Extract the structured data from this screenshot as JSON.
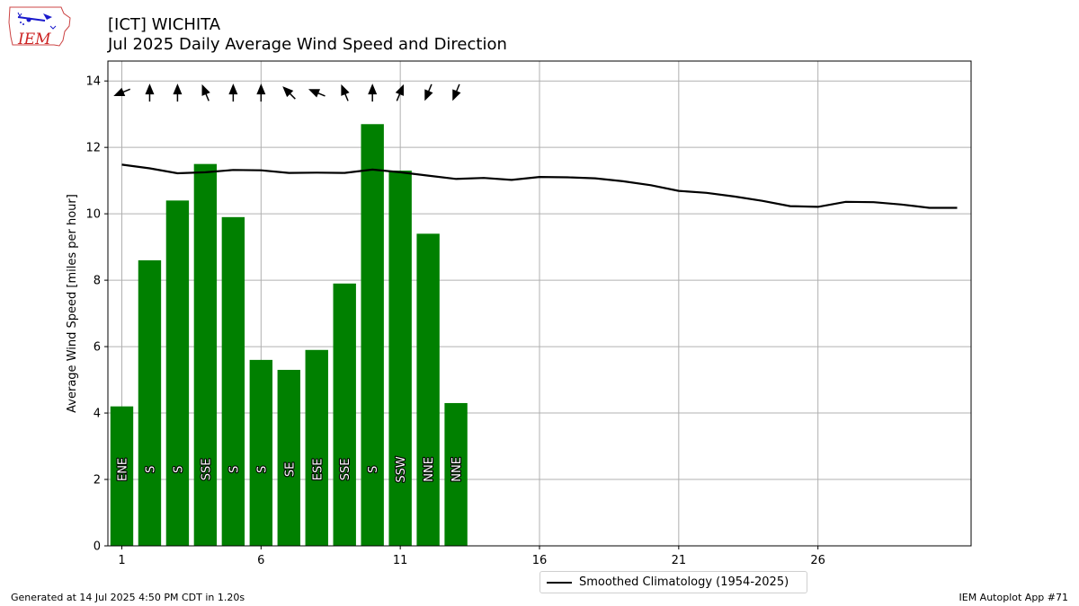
{
  "header": {
    "title": "[ICT] WICHITA",
    "subtitle": "Jul 2025 Daily Average Wind Speed and Direction"
  },
  "logo": {
    "text": "IEM",
    "icon": "iem-iowa-logo-icon"
  },
  "footer": {
    "left": "Generated at 14 Jul 2025 4:50 PM CDT in 1.20s",
    "right": "IEM Autoplot App #71"
  },
  "legend": {
    "label": "Smoothed Climatology (1954-2025)"
  },
  "colors": {
    "bar": "#008000",
    "line": "#000000",
    "grid": "#b0b0b0"
  },
  "chart_data": {
    "type": "bar",
    "title": "[ICT] WICHITA",
    "subtitle": "Jul 2025 Daily Average Wind Speed and Direction",
    "ylabel": "Average Wind Speed [miles per hour]",
    "xlabel": "",
    "xlim": [
      0.5,
      31.5
    ],
    "ylim": [
      0,
      14.6
    ],
    "grid": true,
    "legend_placement": "bottom-center",
    "x_ticks": [
      1,
      6,
      11,
      16,
      21,
      26
    ],
    "y_ticks": [
      0,
      2,
      4,
      6,
      8,
      10,
      12,
      14
    ],
    "days": [
      1,
      2,
      3,
      4,
      5,
      6,
      7,
      8,
      9,
      10,
      11,
      12,
      13
    ],
    "values": [
      4.2,
      8.6,
      10.4,
      11.5,
      9.9,
      5.6,
      5.3,
      5.9,
      7.9,
      12.7,
      11.3,
      9.4,
      4.3
    ],
    "directions": [
      "ENE",
      "S",
      "S",
      "SSE",
      "S",
      "S",
      "SE",
      "ESE",
      "SSE",
      "S",
      "SSW",
      "NNE",
      "NNE"
    ],
    "direction_degrees": [
      67.5,
      180,
      180,
      157.5,
      180,
      180,
      135,
      112.5,
      157.5,
      180,
      202.5,
      22.5,
      22.5
    ],
    "climatology": {
      "name": "Smoothed Climatology (1954-2025)",
      "x": [
        1,
        2,
        3,
        4,
        5,
        6,
        7,
        8,
        9,
        10,
        11,
        12,
        13,
        14,
        15,
        16,
        17,
        18,
        19,
        20,
        21,
        22,
        23,
        24,
        25,
        26,
        27,
        28,
        29,
        30,
        31
      ],
      "y": [
        11.48,
        11.37,
        11.22,
        11.25,
        11.32,
        11.31,
        11.23,
        11.24,
        11.23,
        11.33,
        11.25,
        11.15,
        11.05,
        11.08,
        11.02,
        11.11,
        11.1,
        11.07,
        10.98,
        10.86,
        10.69,
        10.63,
        10.52,
        10.39,
        10.23,
        10.21,
        10.36,
        10.35,
        10.28,
        10.18,
        10.18
      ]
    }
  }
}
